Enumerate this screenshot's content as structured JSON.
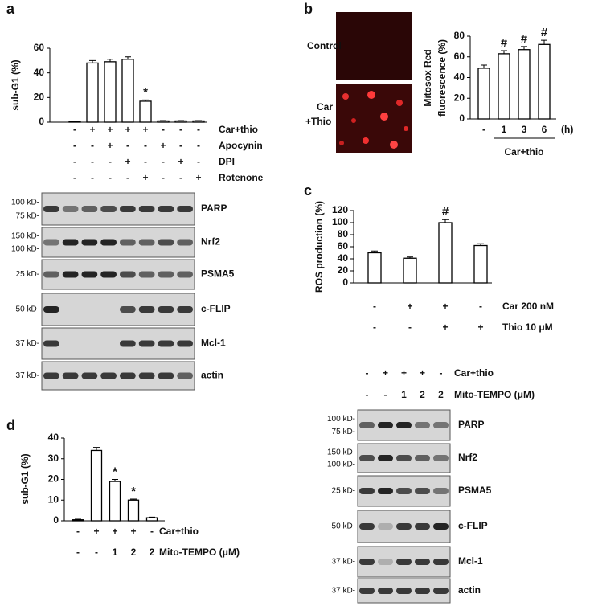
{
  "panels": [
    "a",
    "b",
    "c",
    "d"
  ],
  "chart_data": [
    {
      "type": "bar",
      "ylabel": [
        "sub-G1 (%)"
      ],
      "ylim": [
        0,
        60
      ],
      "yticks": [
        0,
        20,
        40,
        60
      ],
      "values": [
        0.5,
        48,
        49,
        51,
        17,
        1,
        1,
        1
      ],
      "errors": [
        0.5,
        2,
        2,
        2,
        1,
        0.3,
        0.3,
        0.3
      ],
      "annotations": [
        null,
        null,
        null,
        null,
        "*",
        null,
        null,
        null
      ],
      "treatments": [
        {
          "name": "Car+thio",
          "signs": [
            "-",
            "+",
            "+",
            "+",
            "+",
            "-",
            "-",
            "-"
          ]
        },
        {
          "name": "Apocynin",
          "signs": [
            "-",
            "-",
            "+",
            "-",
            "-",
            "+",
            "-",
            "-"
          ]
        },
        {
          "name": "DPI",
          "signs": [
            "-",
            "-",
            "-",
            "+",
            "-",
            "-",
            "+",
            "-"
          ]
        },
        {
          "name": "Rotenone",
          "signs": [
            "-",
            "-",
            "-",
            "-",
            "+",
            "-",
            "-",
            "+"
          ]
        }
      ]
    },
    {
      "type": "bar",
      "ylabel": [
        "Mitosox Red",
        "fluorescence (%)"
      ],
      "ylim": [
        0,
        80
      ],
      "yticks": [
        0,
        20,
        40,
        60,
        80
      ],
      "categories": [
        "-",
        "1",
        "3",
        "6"
      ],
      "x_unit": "(h)",
      "group_label": "Car+thio",
      "values": [
        49,
        63,
        67,
        72
      ],
      "errors": [
        3,
        3,
        3,
        4
      ],
      "annotations": [
        null,
        "#",
        "#",
        "#"
      ]
    },
    {
      "type": "bar",
      "ylabel": [
        "ROS production (%)"
      ],
      "ylim": [
        0,
        120
      ],
      "yticks": [
        0,
        20,
        40,
        60,
        80,
        100,
        120
      ],
      "values": [
        50,
        41,
        100,
        62
      ],
      "errors": [
        3,
        2,
        5,
        3
      ],
      "annotations": [
        null,
        null,
        "#",
        null
      ],
      "treatments": [
        {
          "name": "Car 200 nM",
          "signs": [
            "-",
            "+",
            "+",
            "-"
          ]
        },
        {
          "name": "Thio 10 μM",
          "signs": [
            "-",
            "-",
            "+",
            "+"
          ]
        }
      ]
    },
    {
      "type": "bar",
      "ylabel": [
        "sub-G1 (%)"
      ],
      "ylim": [
        0,
        40
      ],
      "yticks": [
        0,
        10,
        20,
        30,
        40
      ],
      "values": [
        0.5,
        34,
        19,
        10,
        1.5
      ],
      "errors": [
        0.3,
        1.5,
        1,
        0.5,
        0.3
      ],
      "annotations": [
        null,
        null,
        "*",
        "*",
        null
      ],
      "treatments": [
        {
          "name": "Car+thio",
          "signs": [
            "-",
            "+",
            "+",
            "+",
            "-"
          ]
        },
        {
          "name": "Mito-TEMPO (μM)",
          "signs": [
            "-",
            "-",
            "1",
            "2",
            "2"
          ]
        }
      ]
    }
  ],
  "image_labels": [
    "Control",
    "Car",
    "+Thio"
  ],
  "blot_a": {
    "rows": [
      {
        "label": "PARP",
        "markers": [
          "100 kD-",
          "75 kD-"
        ]
      },
      {
        "label": "Nrf2",
        "markers": [
          "150 kD-",
          "100 kD-"
        ]
      },
      {
        "label": "PSMA5",
        "markers": [
          "25 kD-"
        ]
      },
      {
        "label": "c-FLIP",
        "markers": [
          "50 kD-"
        ]
      },
      {
        "label": "Mcl-1",
        "markers": [
          "37 kD-"
        ]
      },
      {
        "label": "actin",
        "markers": [
          "37 kD-"
        ]
      }
    ]
  },
  "blot_c": {
    "treatments": [
      {
        "name": "Car+thio",
        "signs": [
          "-",
          "+",
          "+",
          "+",
          "-"
        ]
      },
      {
        "name": "Mito-TEMPO (μM)",
        "signs": [
          "-",
          "-",
          "1",
          "2",
          "2"
        ]
      }
    ],
    "rows": [
      {
        "label": "PARP",
        "markers": [
          "100 kD-",
          "75 kD-"
        ]
      },
      {
        "label": "Nrf2",
        "markers": [
          "150 kD-",
          "100 kD-"
        ]
      },
      {
        "label": "PSMA5",
        "markers": [
          "25 kD-"
        ]
      },
      {
        "label": "c-FLIP",
        "markers": [
          "50 kD-"
        ]
      },
      {
        "label": "Mcl-1",
        "markers": [
          "37 kD-"
        ]
      },
      {
        "label": "actin",
        "markers": [
          "37 kD-"
        ]
      }
    ]
  }
}
